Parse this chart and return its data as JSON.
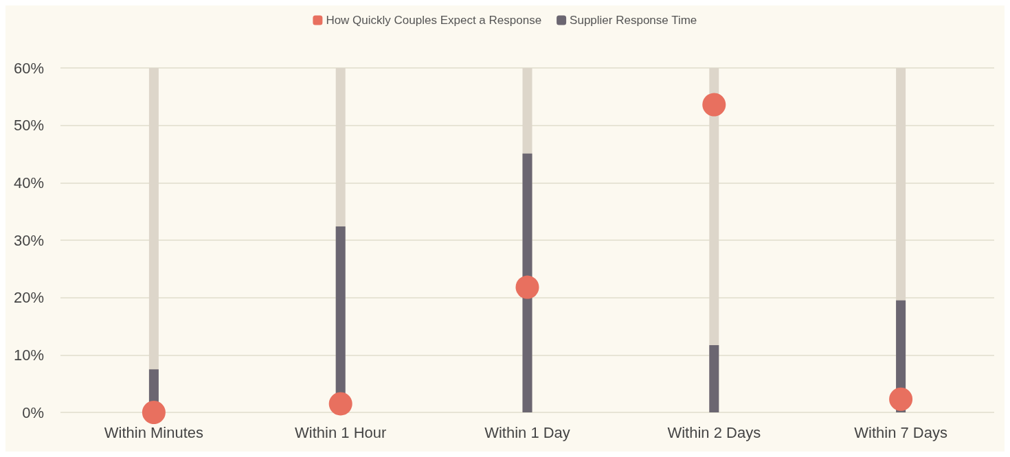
{
  "chart_data": {
    "type": "bar",
    "categories": [
      "Within Minutes",
      "Within 1 Hour",
      "Within 1 Day",
      "Within 2 Days",
      "Within 7 Days"
    ],
    "series": [
      {
        "name": "How Quickly Couples Expect a Response",
        "type": "scatter",
        "color": "#e8705f",
        "values": [
          0,
          1.5,
          21.8,
          53.6,
          2.3
        ]
      },
      {
        "name": "Supplier Response Time",
        "color": "#6b6671",
        "values": [
          7.5,
          32.4,
          45.1,
          11.7,
          19.5
        ]
      }
    ],
    "ylim": [
      0,
      60
    ],
    "yticks": [
      {
        "value": 0,
        "label": "0%"
      },
      {
        "value": 10,
        "label": "10%"
      },
      {
        "value": 20,
        "label": "20%"
      },
      {
        "value": 30,
        "label": "30%"
      },
      {
        "value": 40,
        "label": "40%"
      },
      {
        "value": 50,
        "label": "50%"
      },
      {
        "value": 60,
        "label": "60%"
      }
    ],
    "grid": "y",
    "legend": "top",
    "marker": "circle"
  }
}
